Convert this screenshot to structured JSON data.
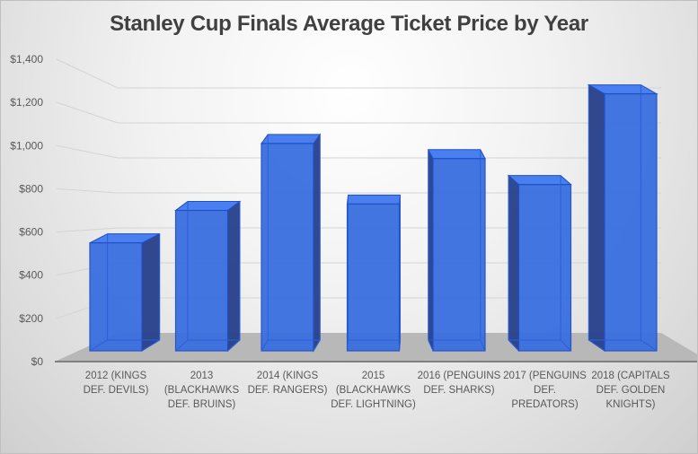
{
  "chart_data": {
    "type": "bar",
    "style": "3d-column",
    "title": "Stanley Cup Finals Average Ticket Price by Year",
    "xlabel": "",
    "ylabel": "",
    "ylim": [
      0,
      1400
    ],
    "grid": true,
    "yticks": [
      "$0",
      "$200",
      "$400",
      "$600",
      "$800",
      "$1,000",
      "$1,200",
      "$1,400"
    ],
    "ytick_values": [
      0,
      200,
      400,
      600,
      800,
      1000,
      1200,
      1400
    ],
    "categories": [
      [
        "2012 (KINGS",
        "DEF. DEVILS)"
      ],
      [
        "2013",
        "(BLACKHAWKS",
        "DEF. BRUINS)"
      ],
      [
        "2014 (KINGS",
        "DEF. RANGERS)"
      ],
      [
        "2015",
        "(BLACKHAWKS",
        "DEF. LIGHTNING)"
      ],
      [
        "2016 (PENGUINS",
        "DEF. SHARKS)"
      ],
      [
        "2017 (PENGUINS",
        "DEF.",
        "PREDATORS)"
      ],
      [
        "2018 (CAPITALS",
        "DEF. GOLDEN",
        "KNIGHTS)"
      ]
    ],
    "values": [
      500,
      650,
      960,
      680,
      890,
      770,
      1190
    ],
    "colors": {
      "bar_front": "#3a6fe0",
      "bar_side": "#27408b",
      "bar_edge": "#1f4fc4",
      "floor": "#b8b8b8",
      "grid": "#d4d4d4"
    }
  }
}
